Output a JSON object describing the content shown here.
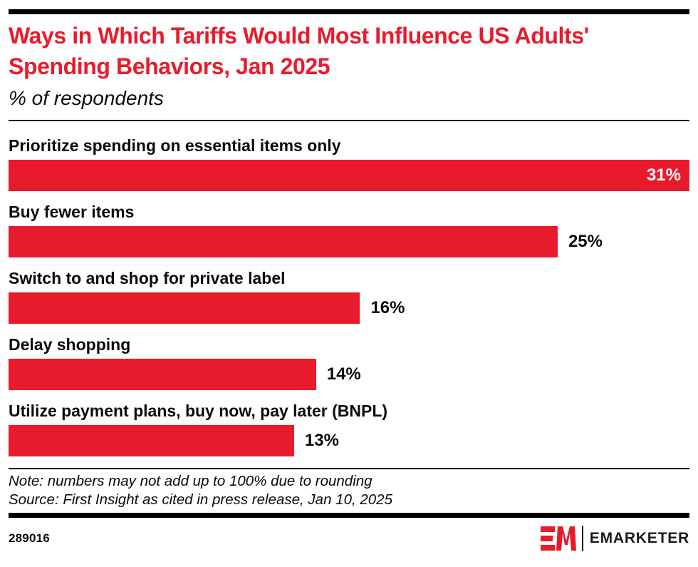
{
  "header": {
    "title": "Ways in Which Tariffs Would Most Influence US Adults' Spending Behaviors, Jan 2025",
    "subtitle": "% of respondents"
  },
  "chart_data": {
    "type": "bar",
    "orientation": "horizontal",
    "title": "Ways in Which Tariffs Would Most Influence US Adults' Spending Behaviors, Jan 2025",
    "subtitle": "% of respondents",
    "categories": [
      "Prioritize spending on essential items only",
      "Buy fewer items",
      "Switch to and shop for private label",
      "Delay shopping",
      "Utilize payment plans, buy now, pay later (BNPL)"
    ],
    "values": [
      31,
      25,
      16,
      14,
      13
    ],
    "value_labels": [
      "31%",
      "25%",
      "16%",
      "14%",
      "13%"
    ],
    "unit": "%",
    "xlim": [
      0,
      31
    ],
    "grid": false,
    "legend": false,
    "bar_color": "#E81B2C",
    "value_label_inside": [
      true,
      false,
      false,
      false,
      false
    ]
  },
  "footnotes": {
    "note": "Note: numbers may not add up to 100% due to rounding",
    "source": "Source: First Insight as cited in press release, Jan 10, 2025"
  },
  "footer": {
    "chart_id": "289016",
    "brand": "EMARKETER"
  },
  "colors": {
    "accent_red": "#E81B2C",
    "text_black": "#0b0b0b",
    "value_inside_text": "#ffffff"
  }
}
